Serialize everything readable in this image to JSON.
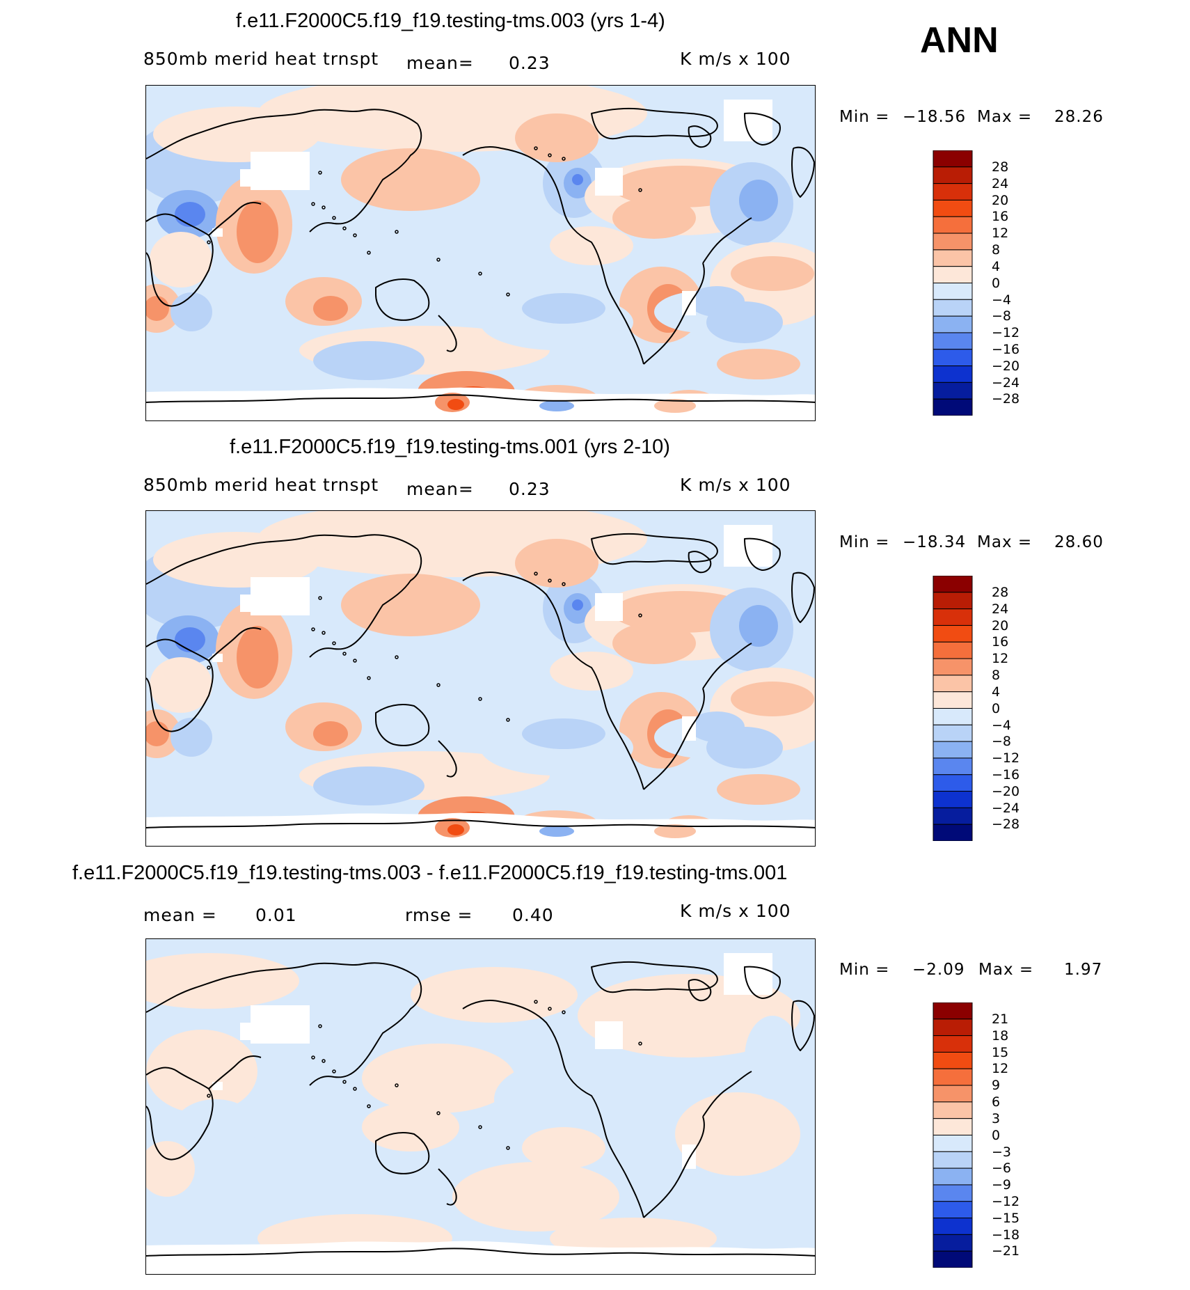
{
  "header": {
    "season": "ANN"
  },
  "panels": [
    {
      "title": "f.e11.F2000C5.f19_f19.testing-tms.003 (yrs 1-4)",
      "variable": "850mb merid heat trnspt",
      "mean_label": "mean=",
      "mean_value": "0.23",
      "units": "K m/s x 100",
      "min_label": "Min =",
      "min_value": "−18.56",
      "max_label": "Max =",
      "max_value": "28.26",
      "colorbar_ticks": [
        "28",
        "24",
        "20",
        "16",
        "12",
        "8",
        "4",
        "0",
        "−4",
        "−8",
        "−12",
        "−16",
        "−20",
        "−24",
        "−28"
      ]
    },
    {
      "title": "f.e11.F2000C5.f19_f19.testing-tms.001 (yrs 2-10)",
      "variable": "850mb merid heat trnspt",
      "mean_label": "mean=",
      "mean_value": "0.23",
      "units": "K m/s x 100",
      "min_label": "Min =",
      "min_value": "−18.34",
      "max_label": "Max =",
      "max_value": "28.60",
      "colorbar_ticks": [
        "28",
        "24",
        "20",
        "16",
        "12",
        "8",
        "4",
        "0",
        "−4",
        "−8",
        "−12",
        "−16",
        "−20",
        "−24",
        "−28"
      ]
    },
    {
      "title": "f.e11.F2000C5.f19_f19.testing-tms.003 - f.e11.F2000C5.f19_f19.testing-tms.001",
      "mean_label": "mean =",
      "mean_value": "0.01",
      "rmse_label": "rmse =",
      "rmse_value": "0.40",
      "units": "K m/s x 100",
      "min_label": "Min =",
      "min_value": "−2.09",
      "max_label": "Max =",
      "max_value": "1.97",
      "colorbar_ticks": [
        "21",
        "18",
        "15",
        "12",
        "9",
        "6",
        "3",
        "0",
        "−3",
        "−6",
        "−9",
        "−12",
        "−15",
        "−18",
        "−21"
      ]
    }
  ],
  "colorbar_colors": [
    "#8b0000",
    "#b91d05",
    "#d8300a",
    "#f14c12",
    "#f56f3c",
    "#f69369",
    "#fbc4a7",
    "#fde7d9",
    "#d8e9fb",
    "#b9d3f7",
    "#8bb2f2",
    "#5a86ef",
    "#2d5bea",
    "#0d32cf",
    "#061d9e",
    "#000a78"
  ]
}
